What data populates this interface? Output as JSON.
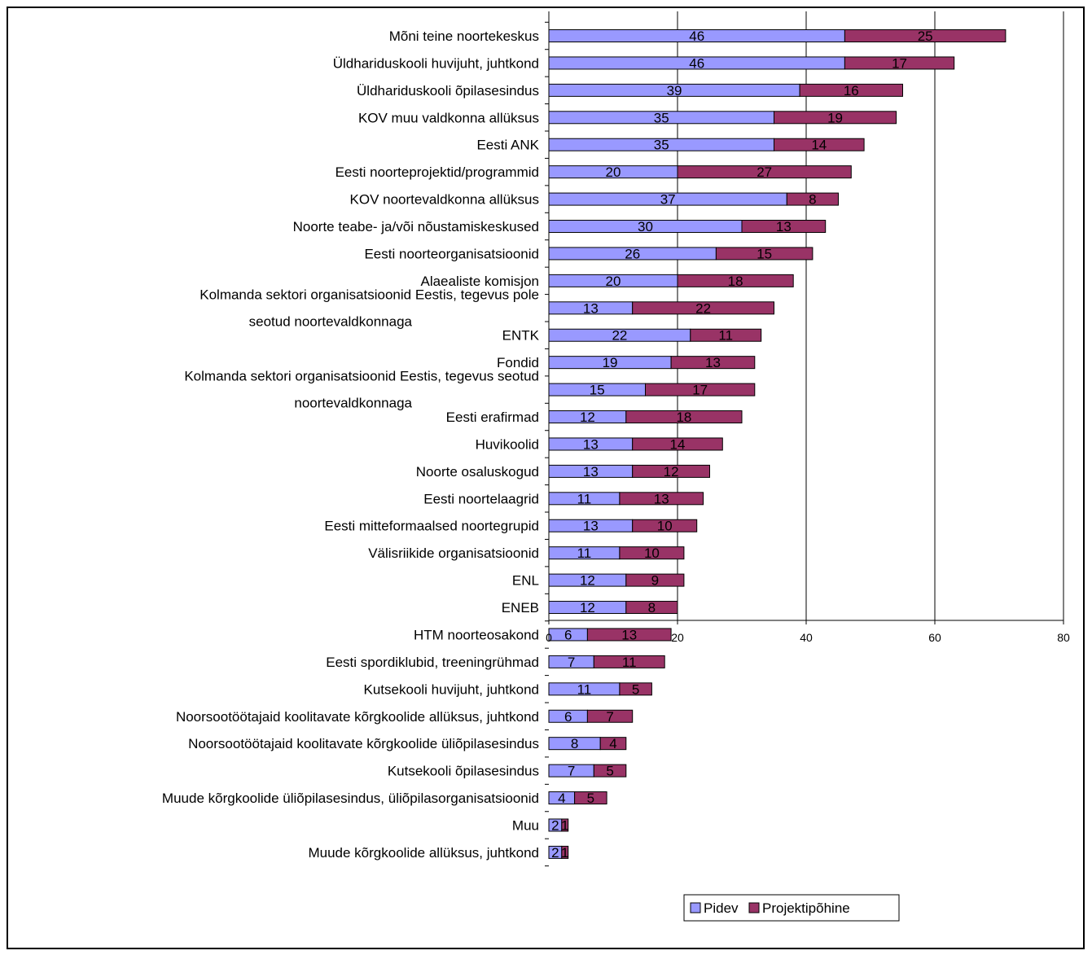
{
  "chart_data": {
    "type": "bar",
    "orientation": "horizontal",
    "stacked": true,
    "categories": [
      "Mõni teine noortekeskus",
      "Üldhariduskooli huvijuht, juhtkond",
      "Üldhariduskooli õpilasesindus",
      "KOV muu valdkonna allüksus",
      "Eesti ANK",
      "Eesti noorteprojektid/programmid",
      "KOV noortevaldkonna allüksus",
      "Noorte teabe- ja/või nõustamiskeskused",
      "Eesti noorteorganisatsioonid",
      "Alaealiste komisjon",
      "Kolmanda sektori organisatsioonid Eestis, tegevus pole seotud noortevaldkonnaga",
      "ENTK",
      "Fondid",
      "Kolmanda sektori organisatsioonid Eestis, tegevus seotud noortevaldkonnaga",
      "Eesti erafirmad",
      "Huvikoolid",
      "Noorte osaluskogud",
      "Eesti noortelaagrid",
      "Eesti mitteformaalsed noortegrupid",
      "Välisriikide organisatsioonid",
      "ENL",
      "ENEB",
      "HTM noorteosakond",
      "Eesti spordiklubid, treeningrühmad",
      "Kutsekooli huvijuht, juhtkond",
      "Noorsootöötajaid koolitavate kõrgkoolide allüksus, juhtkond",
      "Noorsootöötajaid koolitavate kõrgkoolide üliõpilasesindus",
      "Kutsekooli õpilasesindus",
      "Muude kõrgkoolide üliõpilasesindus, üliõpilasorganisatsioonid",
      "Muu",
      "Muude kõrgkoolide allüksus, juhtkond"
    ],
    "category_lines": [
      [
        "Mõni teine noortekeskus"
      ],
      [
        "Üldhariduskooli huvijuht, juhtkond"
      ],
      [
        "Üldhariduskooli õpilasesindus"
      ],
      [
        "KOV muu valdkonna allüksus"
      ],
      [
        "Eesti ANK"
      ],
      [
        "Eesti noorteprojektid/programmid"
      ],
      [
        "KOV noortevaldkonna allüksus"
      ],
      [
        "Noorte teabe- ja/või nõustamiskeskused"
      ],
      [
        "Eesti noorteorganisatsioonid"
      ],
      [
        "Alaealiste komisjon"
      ],
      [
        "Kolmanda sektori organisatsioonid Eestis, tegevus pole",
        "seotud noortevaldkonnaga"
      ],
      [
        "ENTK"
      ],
      [
        "Fondid"
      ],
      [
        "Kolmanda sektori organisatsioonid Eestis, tegevus seotud",
        "noortevaldkonnaga"
      ],
      [
        "Eesti erafirmad"
      ],
      [
        "Huvikoolid"
      ],
      [
        "Noorte osaluskogud"
      ],
      [
        "Eesti noortelaagrid"
      ],
      [
        "Eesti mitteformaalsed noortegrupid"
      ],
      [
        "Välisriikide organisatsioonid"
      ],
      [
        "ENL"
      ],
      [
        "ENEB"
      ],
      [
        "HTM noorteosakond"
      ],
      [
        "Eesti spordiklubid, treeningrühmad"
      ],
      [
        "Kutsekooli huvijuht, juhtkond"
      ],
      [
        "Noorsootöötajaid koolitavate kõrgkoolide allüksus, juhtkond"
      ],
      [
        "Noorsootöötajaid koolitavate kõrgkoolide üliõpilasesindus"
      ],
      [
        "Kutsekooli õpilasesindus"
      ],
      [
        "Muude kõrgkoolide üliõpilasesindus, üliõpilasorganisatsioonid"
      ],
      [
        "Muu"
      ],
      [
        "Muude kõrgkoolide allüksus, juhtkond"
      ]
    ],
    "series": [
      {
        "name": "Pidev",
        "color": "#9999ff",
        "values": [
          46,
          46,
          39,
          35,
          35,
          20,
          37,
          30,
          26,
          20,
          13,
          22,
          19,
          15,
          12,
          13,
          13,
          11,
          13,
          11,
          12,
          12,
          6,
          7,
          11,
          6,
          8,
          7,
          4,
          2,
          2
        ]
      },
      {
        "name": "Projektipõhine",
        "color": "#993366",
        "values": [
          25,
          17,
          16,
          19,
          14,
          27,
          8,
          13,
          15,
          18,
          22,
          11,
          13,
          17,
          18,
          14,
          12,
          13,
          10,
          10,
          9,
          8,
          13,
          11,
          5,
          7,
          4,
          5,
          5,
          1,
          1
        ]
      }
    ],
    "xlim": [
      0,
      80
    ],
    "xticks": [
      0,
      20,
      40,
      60,
      80
    ],
    "grid": true,
    "legend_position": "bottom"
  }
}
